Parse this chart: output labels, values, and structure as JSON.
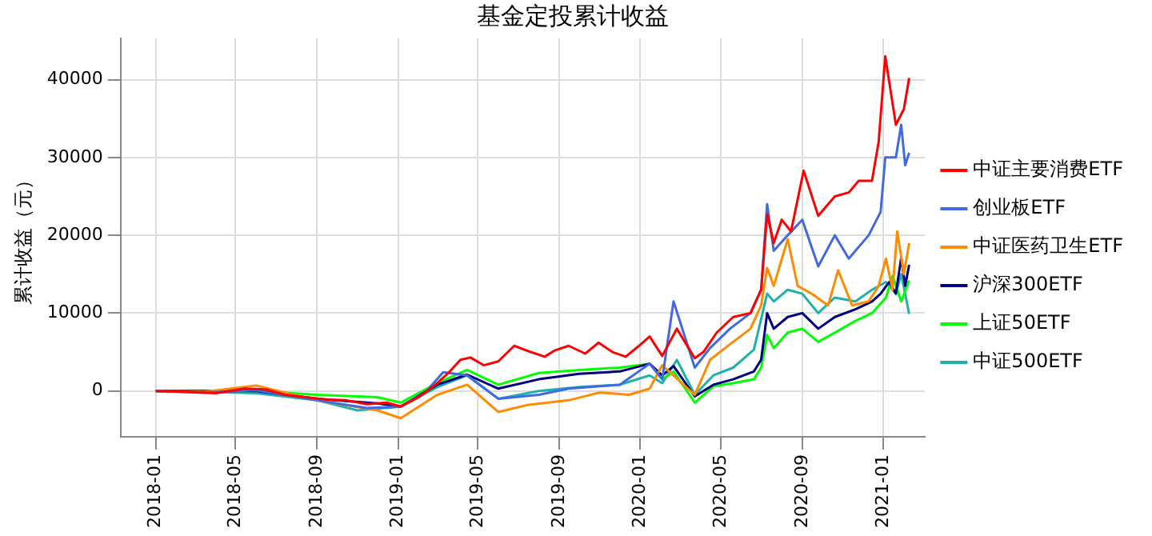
{
  "chart_data": {
    "type": "line",
    "title": "基金定投累计收益",
    "ylabel": "累计收益（元）",
    "xlim": [
      "2017-11-09",
      "2021-03-05"
    ],
    "ylim": [
      -5900,
      45300
    ],
    "xticks": [
      "2018-01",
      "2018-05",
      "2018-09",
      "2019-01",
      "2019-05",
      "2019-09",
      "2020-01",
      "2020-05",
      "2020-09",
      "2021-01"
    ],
    "yticks": [
      0,
      10000,
      20000,
      30000,
      40000
    ],
    "grid": true,
    "legend": "right",
    "marker": "none",
    "line_style": "solid",
    "series": [
      {
        "name": "中证主要消费ETF",
        "color": "#ff0000",
        "x": [
          "2018-01-01",
          "2018-02-15",
          "2018-04-01",
          "2018-05-15",
          "2018-06-15",
          "2018-07-15",
          "2018-08-15",
          "2018-09-15",
          "2018-10-15",
          "2018-11-15",
          "2018-12-15",
          "2019-01-05",
          "2019-02-01",
          "2019-03-01",
          "2019-03-20",
          "2019-04-05",
          "2019-04-20",
          "2019-05-10",
          "2019-06-01",
          "2019-06-25",
          "2019-07-20",
          "2019-08-10",
          "2019-08-25",
          "2019-09-15",
          "2019-10-10",
          "2019-10-30",
          "2019-11-20",
          "2019-12-10",
          "2019-12-30",
          "2020-01-15",
          "2020-02-03",
          "2020-02-25",
          "2020-03-23",
          "2020-04-05",
          "2020-04-25",
          "2020-05-20",
          "2020-06-15",
          "2020-07-01",
          "2020-07-10",
          "2020-07-20",
          "2020-08-01",
          "2020-08-15",
          "2020-09-03",
          "2020-09-25",
          "2020-10-20",
          "2020-11-10",
          "2020-11-25",
          "2020-12-15",
          "2020-12-25",
          "2021-01-04",
          "2021-01-20",
          "2021-02-01",
          "2021-02-09"
        ],
        "values": [
          0,
          -100,
          -300,
          300,
          200,
          -500,
          -800,
          -1100,
          -1200,
          -1700,
          -1500,
          -2000,
          -800,
          1000,
          2500,
          4000,
          4300,
          3300,
          3800,
          5800,
          5000,
          4400,
          5200,
          5800,
          4800,
          6200,
          5000,
          4400,
          5800,
          7000,
          4500,
          8000,
          4200,
          5000,
          7500,
          9500,
          10000,
          13000,
          22700,
          19000,
          22000,
          20500,
          28300,
          22500,
          25000,
          25500,
          27000,
          27000,
          32000,
          43000,
          34200,
          36200,
          40200
        ]
      },
      {
        "name": "创业板ETF",
        "color": "#4169e1",
        "x": [
          "2018-01-01",
          "2018-03-15",
          "2018-06-01",
          "2018-09-01",
          "2018-11-15",
          "2019-01-05",
          "2019-02-10",
          "2019-03-10",
          "2019-04-15",
          "2019-06-01",
          "2019-08-01",
          "2019-09-15",
          "2019-12-01",
          "2020-01-15",
          "2020-02-03",
          "2020-02-20",
          "2020-03-23",
          "2020-04-15",
          "2020-05-15",
          "2020-06-15",
          "2020-07-01",
          "2020-07-10",
          "2020-07-20",
          "2020-08-10",
          "2020-09-01",
          "2020-09-25",
          "2020-10-20",
          "2020-11-10",
          "2020-12-10",
          "2020-12-28",
          "2021-01-04",
          "2021-01-20",
          "2021-01-28",
          "2021-02-03",
          "2021-02-09"
        ],
        "values": [
          0,
          -200,
          100,
          -1200,
          -2200,
          -2000,
          -300,
          2400,
          2000,
          -1000,
          -500,
          300,
          800,
          3500,
          1500,
          11500,
          3000,
          5500,
          8000,
          10000,
          13000,
          24000,
          18000,
          20000,
          22000,
          16000,
          20000,
          17000,
          20000,
          23000,
          30000,
          30000,
          34200,
          29000,
          30600
        ]
      },
      {
        "name": "中证医药卫生ETF",
        "color": "#ff8c00",
        "x": [
          "2018-01-01",
          "2018-03-15",
          "2018-06-01",
          "2018-09-01",
          "2018-12-01",
          "2019-01-05",
          "2019-03-01",
          "2019-04-15",
          "2019-06-01",
          "2019-07-15",
          "2019-09-15",
          "2019-11-01",
          "2019-12-15",
          "2020-01-15",
          "2020-02-03",
          "2020-03-23",
          "2020-04-15",
          "2020-05-15",
          "2020-06-15",
          "2020-07-01",
          "2020-07-10",
          "2020-07-20",
          "2020-08-10",
          "2020-08-25",
          "2020-09-15",
          "2020-10-10",
          "2020-10-25",
          "2020-11-15",
          "2020-12-10",
          "2020-12-25",
          "2021-01-05",
          "2021-01-15",
          "2021-01-22",
          "2021-02-01",
          "2021-02-09"
        ],
        "values": [
          0,
          -100,
          700,
          -1200,
          -2500,
          -3500,
          -500,
          800,
          -2700,
          -1800,
          -1200,
          -200,
          -500,
          300,
          3300,
          -500,
          4000,
          6000,
          8000,
          11000,
          15800,
          13500,
          19500,
          13500,
          12500,
          11000,
          15500,
          11000,
          11500,
          13500,
          17000,
          13000,
          20500,
          15000,
          19000
        ]
      },
      {
        "name": "沪深300ETF",
        "color": "#000080",
        "x": [
          "2018-01-01",
          "2018-06-01",
          "2018-09-01",
          "2018-12-01",
          "2019-01-05",
          "2019-03-01",
          "2019-04-15",
          "2019-06-01",
          "2019-08-01",
          "2019-10-01",
          "2019-12-01",
          "2020-01-15",
          "2020-02-03",
          "2020-02-20",
          "2020-03-23",
          "2020-04-20",
          "2020-05-20",
          "2020-06-20",
          "2020-07-01",
          "2020-07-10",
          "2020-07-20",
          "2020-08-10",
          "2020-09-01",
          "2020-09-25",
          "2020-10-20",
          "2020-11-20",
          "2020-12-15",
          "2020-12-28",
          "2021-01-10",
          "2021-01-20",
          "2021-01-28",
          "2021-02-03",
          "2021-02-09"
        ],
        "values": [
          0,
          0,
          -1000,
          -1600,
          -2000,
          800,
          2100,
          300,
          1500,
          2200,
          2500,
          3500,
          2000,
          3200,
          -700,
          800,
          1500,
          2500,
          4000,
          10000,
          8000,
          9500,
          10000,
          8000,
          9500,
          10500,
          11500,
          12500,
          14000,
          12500,
          17100,
          13500,
          16200
        ]
      },
      {
        "name": "上证50ETF",
        "color": "#00ff00",
        "x": [
          "2018-01-01",
          "2018-06-01",
          "2018-09-01",
          "2018-12-01",
          "2019-01-05",
          "2019-03-01",
          "2019-04-15",
          "2019-06-01",
          "2019-08-01",
          "2019-10-01",
          "2019-12-01",
          "2020-01-15",
          "2020-02-03",
          "2020-02-20",
          "2020-03-23",
          "2020-04-20",
          "2020-05-20",
          "2020-06-20",
          "2020-07-01",
          "2020-07-10",
          "2020-07-20",
          "2020-08-10",
          "2020-09-01",
          "2020-09-25",
          "2020-10-20",
          "2020-11-20",
          "2020-12-15",
          "2021-01-05",
          "2021-01-15",
          "2021-01-28",
          "2021-02-09"
        ],
        "values": [
          0,
          0,
          -500,
          -800,
          -1500,
          1000,
          2700,
          800,
          2300,
          2700,
          3000,
          3500,
          1500,
          2500,
          -1500,
          600,
          1000,
          1500,
          3000,
          7200,
          5500,
          7500,
          8000,
          6300,
          7500,
          9000,
          10000,
          12000,
          14800,
          11500,
          14200
        ]
      },
      {
        "name": "中证500ETF",
        "color": "#20b2aa",
        "x": [
          "2018-01-01",
          "2018-03-15",
          "2018-06-01",
          "2018-09-01",
          "2018-11-01",
          "2019-01-05",
          "2019-03-01",
          "2019-04-15",
          "2019-06-01",
          "2019-08-01",
          "2019-10-01",
          "2019-12-01",
          "2020-01-15",
          "2020-02-03",
          "2020-02-25",
          "2020-03-23",
          "2020-04-20",
          "2020-05-20",
          "2020-06-20",
          "2020-07-10",
          "2020-07-20",
          "2020-08-10",
          "2020-09-01",
          "2020-09-25",
          "2020-10-20",
          "2020-11-20",
          "2020-12-15",
          "2021-01-05",
          "2021-01-20",
          "2021-01-28",
          "2021-02-09"
        ],
        "values": [
          0,
          -100,
          -300,
          -1200,
          -2500,
          -2000,
          500,
          2000,
          -1000,
          0,
          500,
          800,
          2000,
          1000,
          4000,
          -500,
          2000,
          3000,
          5300,
          12500,
          11500,
          13000,
          12500,
          10000,
          12000,
          11500,
          13000,
          14000,
          12500,
          15000,
          9900
        ]
      }
    ]
  }
}
